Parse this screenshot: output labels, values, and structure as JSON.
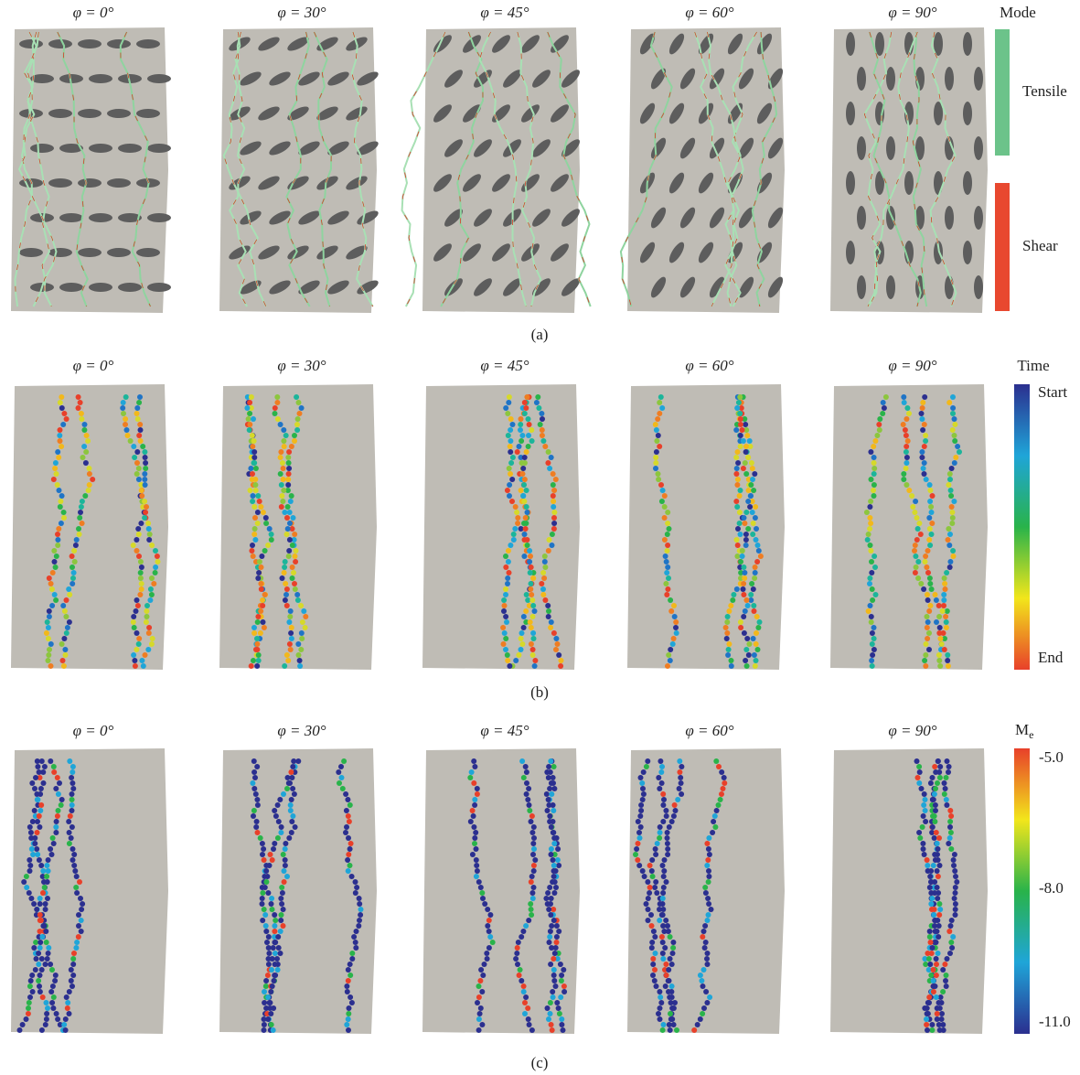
{
  "rows": [
    {
      "label": "(a)",
      "panels": [
        "φ = 0°",
        "φ = 30°",
        "φ = 45°",
        "φ = 60°",
        "φ = 90°"
      ]
    },
    {
      "label": "(b)",
      "panels": [
        "φ = 0°",
        "φ = 30°",
        "φ = 45°",
        "φ = 60°",
        "φ = 90°"
      ]
    },
    {
      "label": "(c)",
      "panels": [
        "φ = 0°",
        "φ = 30°",
        "φ = 45°",
        "φ = 60°",
        "φ = 90°"
      ]
    }
  ],
  "legends": {
    "mode": {
      "title": "Mode",
      "items": [
        "Tensile",
        "Shear"
      ]
    },
    "time": {
      "title": "Time",
      "start": "Start",
      "end": "End"
    },
    "magnitude": {
      "title": {
        "base": "M",
        "sub": "e"
      },
      "ticks": [
        "-5.0",
        "-8.0",
        "-11.0"
      ]
    }
  }
}
